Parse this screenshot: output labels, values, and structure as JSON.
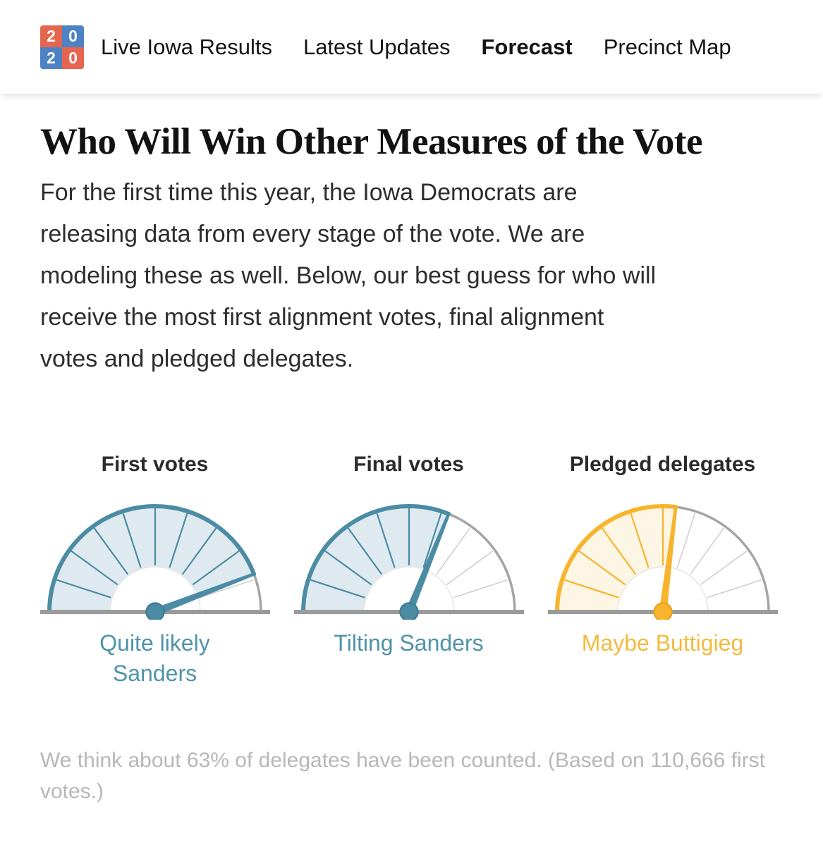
{
  "nav": {
    "logo": {
      "name": "2020-election-logo",
      "cells": [
        {
          "text": "2",
          "bg": "#e5654f"
        },
        {
          "text": "0",
          "bg": "#4d83c4"
        },
        {
          "text": "2",
          "bg": "#4d83c4"
        },
        {
          "text": "0",
          "bg": "#e5654f"
        }
      ]
    },
    "items": [
      {
        "label": "Live Iowa Results",
        "active": false
      },
      {
        "label": "Latest Updates",
        "active": false
      },
      {
        "label": "Forecast",
        "active": true
      },
      {
        "label": "Precinct Map",
        "active": false
      }
    ]
  },
  "main": {
    "title": "Who Will Win Other Measures of the Vote",
    "intro": "For the first time this year, the Iowa Democrats are\nreleasing data from every stage of the vote. We are\nmodeling these as well. Below, our best guess for who will\nreceive the most first alignment votes, final alignment\nvotes and pledged delegates.",
    "footnote": "We think about 63% of delegates have been counted. (Based on 110,666 first\nvotes.)"
  },
  "chart_data": {
    "type": "gauge",
    "layout": "three half-circle probability dials, needle angle measured in degrees above the right horizontal (0 = right end, 180 = left end); shaded wedge spans from 180 down to the needle",
    "segments": 10,
    "scale": {
      "min_angle_deg": 0,
      "max_angle_deg": 180
    },
    "gauges": [
      {
        "title": "First votes",
        "label": "Quite likely\nSanders",
        "needle_angle_deg": 21,
        "fill_fraction": 0.88,
        "accent": "#4b8ca4",
        "accent_dark": "#3e7e96",
        "fill": "#dfeaf0",
        "label_color": "#4e93a9"
      },
      {
        "title": "Final votes",
        "label": "Tilting Sanders",
        "needle_angle_deg": 68,
        "fill_fraction": 0.62,
        "accent": "#4b8ca4",
        "accent_dark": "#3e7e96",
        "fill": "#dfeaf0",
        "label_color": "#4e93a9"
      },
      {
        "title": "Pledged delegates",
        "label": "Maybe Buttigieg",
        "needle_angle_deg": 83,
        "fill_fraction": 0.54,
        "accent": "#f7b42c",
        "accent_dark": "#e8a51d",
        "fill": "#fdf6e4",
        "label_color": "#f4ba3d"
      }
    ]
  },
  "colors": {
    "logo_red": "#e5654f",
    "logo_blue": "#4d83c4",
    "teal_accent": "#4b8ca4",
    "teal_fill": "#dfeaf0",
    "yellow_accent": "#f7b42c",
    "yellow_fill": "#fdf6e4",
    "gauge_baseline_gray": "#9b9b9b",
    "gauge_arc_gray": "#a5a5a5",
    "gauge_spoke_gray": "#cdcdcd",
    "footnote_gray": "#b7b7b7",
    "text_dark": "#121212"
  }
}
